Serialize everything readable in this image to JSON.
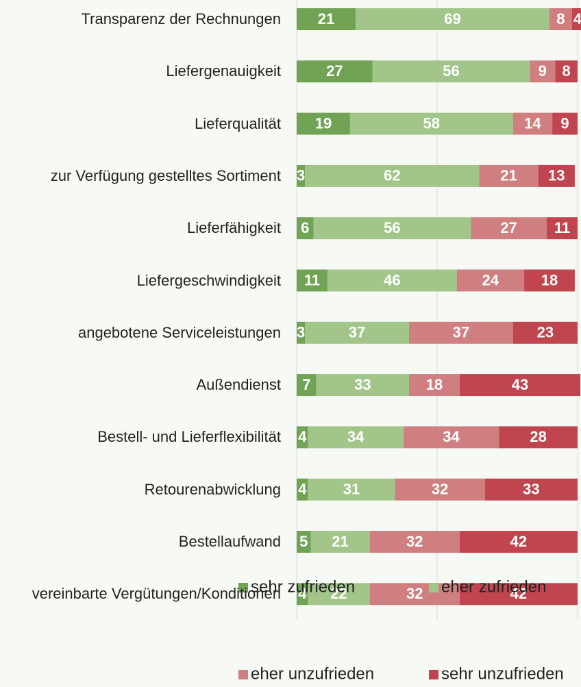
{
  "chart_data": {
    "type": "stacked_bar_horizontal",
    "categories": [
      "Transparenz der Rechnungen",
      "Liefergenauigkeit",
      "Lieferqualität",
      "zur Verfügung gestelltes Sortiment",
      "Lieferfähigkeit",
      "Liefergeschwindigkeit",
      "angebotene Serviceleistungen",
      "Außendienst",
      "Bestell- und Lieferflexibilität",
      "Retourenabwicklung",
      "Bestellaufwand",
      "vereinbarte Vergütungen/Konditionen"
    ],
    "series": [
      {
        "name": "sehr zufrieden",
        "color": "#70a354",
        "values": [
          21,
          27,
          19,
          3,
          6,
          11,
          3,
          7,
          4,
          4,
          5,
          4
        ]
      },
      {
        "name": "eher zufrieden",
        "color": "#a2c68a",
        "values": [
          69,
          56,
          58,
          62,
          56,
          46,
          37,
          33,
          34,
          31,
          21,
          22
        ]
      },
      {
        "name": "eher unzufrieden",
        "color": "#cf7f7f",
        "values": [
          8,
          9,
          14,
          21,
          27,
          24,
          37,
          18,
          34,
          32,
          32,
          32
        ]
      },
      {
        "name": "sehr unzufrieden",
        "color": "#c0454f",
        "values": [
          4,
          8,
          9,
          13,
          11,
          18,
          23,
          43,
          28,
          33,
          42,
          42
        ]
      }
    ],
    "xlim": [
      0,
      100
    ],
    "xticks": [
      0,
      50,
      100
    ],
    "grid": true
  }
}
